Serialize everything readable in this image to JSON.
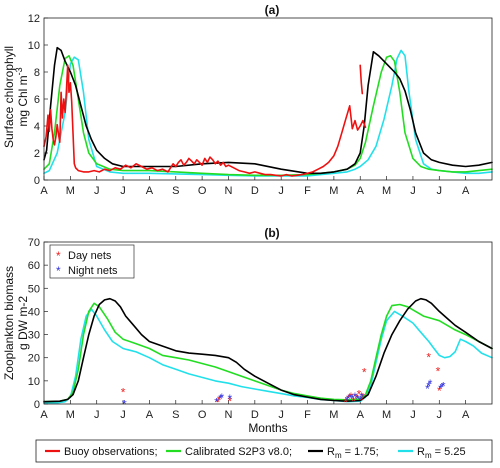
{
  "chart_data": [
    {
      "type": "line",
      "title": "(a)",
      "ylabel_line1": "Surface chlorophyll",
      "ylabel_line2": "mg Chl m",
      "ylabel_sup": "-3",
      "ylim": [
        0,
        12
      ],
      "yticks": [
        0,
        2,
        4,
        6,
        8,
        10,
        12
      ],
      "xlim": [
        0,
        17
      ],
      "xticks": [
        "A",
        "M",
        "J",
        "J",
        "A",
        "S",
        "O",
        "N",
        "D",
        "J",
        "F",
        "M",
        "A",
        "M",
        "J",
        "J",
        "A"
      ],
      "series": [
        {
          "key": "cyan",
          "color": "#22e0ea",
          "width": 1.6,
          "x": [
            0,
            0.2,
            0.5,
            0.8,
            1.0,
            1.15,
            1.3,
            1.5,
            1.7,
            2.0,
            2.5,
            3,
            4,
            5,
            6,
            7,
            8,
            9,
            10,
            10.5,
            11,
            11.5,
            11.8,
            12.0,
            12.3,
            12.6,
            12.9,
            13.2,
            13.4,
            13.55,
            13.7,
            13.85,
            14.1,
            14.4,
            14.7,
            15,
            15.5,
            16,
            16.5,
            17
          ],
          "y": [
            0.5,
            0.7,
            2.0,
            5.0,
            8.6,
            9.1,
            8.9,
            6.5,
            3.0,
            1.0,
            0.6,
            0.5,
            0.5,
            0.45,
            0.4,
            0.35,
            0.3,
            0.3,
            0.3,
            0.4,
            0.5,
            0.6,
            0.8,
            1.0,
            1.5,
            2.5,
            4.5,
            7.0,
            9.0,
            9.6,
            9.2,
            6.5,
            3.0,
            1.2,
            0.8,
            0.7,
            0.6,
            0.5,
            0.5,
            0.6
          ]
        },
        {
          "key": "green",
          "color": "#22dd22",
          "width": 1.6,
          "x": [
            0,
            0.2,
            0.4,
            0.6,
            0.8,
            0.95,
            1.1,
            1.3,
            1.5,
            1.7,
            2.0,
            2.5,
            3,
            4,
            5,
            6,
            7,
            8,
            9,
            10,
            10.5,
            11,
            11.5,
            11.8,
            12.0,
            12.2,
            12.5,
            12.8,
            13.0,
            13.15,
            13.3,
            13.5,
            13.7,
            14.0,
            14.3,
            14.6,
            15,
            15.5,
            16,
            16.5,
            17
          ],
          "y": [
            0.8,
            1.2,
            3.5,
            7.0,
            9.0,
            9.2,
            8.5,
            6.0,
            3.5,
            2.0,
            1.2,
            0.8,
            0.7,
            0.7,
            0.6,
            0.5,
            0.4,
            0.35,
            0.35,
            0.4,
            0.5,
            0.6,
            0.8,
            1.1,
            1.6,
            2.8,
            5.5,
            8.0,
            9.1,
            9.2,
            8.8,
            6.5,
            3.5,
            1.6,
            1.0,
            0.8,
            0.7,
            0.6,
            0.6,
            0.7,
            0.8
          ]
        },
        {
          "key": "black",
          "color": "#000000",
          "width": 1.6,
          "x": [
            0,
            0.1,
            0.25,
            0.4,
            0.5,
            0.65,
            0.8,
            1.0,
            1.2,
            1.4,
            1.6,
            1.8,
            2.0,
            2.3,
            2.6,
            3,
            4,
            5,
            6,
            7,
            8,
            9,
            10,
            10.5,
            11,
            11.5,
            11.8,
            12.0,
            12.15,
            12.3,
            12.5,
            12.7,
            12.9,
            13.1,
            13.3,
            13.5,
            13.7,
            13.9,
            14.1,
            14.4,
            14.7,
            15,
            15.5,
            16,
            16.5,
            17
          ],
          "y": [
            1.5,
            2.2,
            5.5,
            8.5,
            9.8,
            9.6,
            8.8,
            8.0,
            7.0,
            5.5,
            4.0,
            3.0,
            2.2,
            1.6,
            1.2,
            1.0,
            1.0,
            1.0,
            1.2,
            1.3,
            1.2,
            0.8,
            0.5,
            0.5,
            0.6,
            0.8,
            1.2,
            2.0,
            4.0,
            7.0,
            9.5,
            9.2,
            8.8,
            8.4,
            8.0,
            7.5,
            6.6,
            5.2,
            3.5,
            2.0,
            1.5,
            1.3,
            1.1,
            1.0,
            1.1,
            1.3
          ]
        },
        {
          "key": "red",
          "color": "#ee1111",
          "width": 1.6,
          "x": [
            0.0,
            0.08,
            0.15,
            0.2,
            0.25,
            0.3,
            0.35,
            0.4,
            0.45,
            0.5,
            0.55,
            0.6,
            0.65,
            0.7,
            0.75,
            0.8,
            0.85,
            0.9,
            0.95,
            1.0,
            1.05,
            1.1,
            1.15,
            1.2,
            1.3,
            1.5,
            1.7,
            1.9,
            2.1,
            2.3,
            2.5,
            2.7,
            2.9,
            3.1,
            3.3,
            3.5,
            3.7,
            3.9,
            4.1,
            4.3,
            4.5,
            4.7,
            4.9,
            5.0,
            5.1,
            5.2,
            5.3,
            5.4,
            5.5,
            5.6,
            5.7,
            5.8,
            5.9,
            6.0,
            6.1,
            6.2,
            6.3,
            6.4,
            6.5,
            6.6,
            6.7,
            6.8,
            6.9,
            7.0,
            7.2,
            7.4,
            7.6,
            7.8,
            8.0,
            8.2,
            8.4,
            8.6,
            8.8,
            9.0,
            9.2,
            9.4,
            9.6,
            9.8,
            10.0,
            10.2,
            10.4,
            10.6,
            10.8,
            11.0,
            11.15,
            11.3,
            11.45,
            11.6,
            11.7,
            11.8,
            11.9,
            12.0,
            12.1,
            12.2
          ],
          "y": [
            2.5,
            3.2,
            4.8,
            3.6,
            5.2,
            3.8,
            3.0,
            2.6,
            3.2,
            4.1,
            3.4,
            2.8,
            6.5,
            4.6,
            6.0,
            5.0,
            6.6,
            8.5,
            6.5,
            7.2,
            5.8,
            3.5,
            1.2,
            0.9,
            0.7,
            0.6,
            0.6,
            0.7,
            0.6,
            0.8,
            0.7,
            0.9,
            0.8,
            1.1,
            0.9,
            1.2,
            1.0,
            0.8,
            0.9,
            0.7,
            0.8,
            0.6,
            1.2,
            1.0,
            1.3,
            1.5,
            1.1,
            1.3,
            1.6,
            1.4,
            1.2,
            1.5,
            1.3,
            1.1,
            1.6,
            1.3,
            1.7,
            1.5,
            1.2,
            1.4,
            1.1,
            1.3,
            1.0,
            1.1,
            0.9,
            0.7,
            0.6,
            0.5,
            0.6,
            0.5,
            0.4,
            0.4,
            0.35,
            0.3,
            0.4,
            0.3,
            0.35,
            0.4,
            0.5,
            0.6,
            0.8,
            1.0,
            1.3,
            1.8,
            2.5,
            3.5,
            4.5,
            5.5,
            3.8,
            4.4,
            3.7,
            4.0,
            4.4,
            3.9
          ]
        },
        {
          "key": "red2",
          "color": "#ee1111",
          "width": 1.6,
          "x": [
            12.0,
            12.04,
            12.08
          ],
          "y": [
            8.5,
            7.2,
            6.4
          ]
        }
      ]
    },
    {
      "type": "line",
      "title": "(b)",
      "ylabel_line1": "Zooplankton biomass",
      "ylabel_line2": "g DW m-2",
      "xlabel": "Months",
      "ylim": [
        0,
        70
      ],
      "yticks": [
        0,
        10,
        20,
        30,
        40,
        50,
        60,
        70
      ],
      "xlim": [
        0,
        17
      ],
      "xticks": [
        "A",
        "M",
        "J",
        "J",
        "A",
        "S",
        "O",
        "N",
        "D",
        "J",
        "F",
        "M",
        "A",
        "M",
        "J",
        "J",
        "A"
      ],
      "series": [
        {
          "key": "cyan",
          "color": "#22e0ea",
          "width": 1.6,
          "x": [
            0,
            0.5,
            0.8,
            1.0,
            1.2,
            1.4,
            1.6,
            1.8,
            2.0,
            2.3,
            2.6,
            3,
            3.5,
            4,
            4.5,
            5,
            5.5,
            6,
            6.5,
            7,
            7.5,
            8,
            8.5,
            9,
            9.5,
            10,
            10.5,
            11,
            11.5,
            12.0,
            12.2,
            12.4,
            12.6,
            12.8,
            13.0,
            13.3,
            13.6,
            14.0,
            14.3,
            14.6,
            14.8,
            15.0,
            15.2,
            15.4,
            15.6,
            15.8,
            16.0,
            16.3,
            16.6,
            17
          ],
          "y": [
            0.5,
            0.5,
            1.0,
            3.0,
            12.0,
            28.0,
            38.0,
            41.0,
            38.0,
            32.0,
            27.0,
            24.0,
            22.5,
            20.0,
            17.0,
            15.0,
            13.0,
            11.5,
            10.0,
            9.0,
            7.5,
            6.5,
            5.5,
            4.5,
            3.5,
            2.8,
            2.0,
            1.5,
            1.0,
            1.2,
            3.0,
            8.0,
            18.0,
            28.0,
            36.0,
            40.0,
            38.0,
            35.0,
            31.0,
            27.0,
            24.0,
            21.0,
            20.0,
            20.5,
            22.5,
            28.0,
            27.0,
            25.0,
            22.0,
            20.0
          ]
        },
        {
          "key": "green",
          "color": "#22dd22",
          "width": 1.6,
          "x": [
            0,
            0.6,
            0.9,
            1.1,
            1.3,
            1.5,
            1.7,
            1.9,
            2.1,
            2.4,
            2.7,
            3,
            3.5,
            4,
            4.5,
            5,
            5.5,
            6,
            6.5,
            7,
            7.5,
            8,
            8.5,
            9,
            9.5,
            10,
            10.5,
            11,
            11.5,
            12.0,
            12.2,
            12.4,
            12.6,
            12.8,
            13.0,
            13.2,
            13.5,
            13.8,
            14.1,
            14.4,
            14.7,
            15,
            15.3,
            15.6,
            16,
            16.5,
            17
          ],
          "y": [
            1.0,
            1.2,
            2.0,
            5.0,
            15.0,
            30.0,
            40.0,
            43.5,
            42.0,
            37.0,
            31.0,
            28.0,
            26.0,
            24.0,
            21.0,
            20.0,
            19.0,
            17.5,
            16.0,
            14.0,
            12.0,
            10.0,
            8.0,
            6.0,
            4.5,
            3.5,
            2.5,
            2.0,
            1.8,
            2.2,
            4.0,
            10.0,
            20.0,
            30.0,
            38.0,
            42.5,
            43.0,
            42.0,
            40.0,
            38.0,
            37.0,
            36.0,
            34.0,
            32.0,
            30.0,
            27.0,
            24.0
          ]
        },
        {
          "key": "black",
          "color": "#000000",
          "width": 1.6,
          "x": [
            0,
            0.6,
            0.9,
            1.1,
            1.3,
            1.5,
            1.7,
            1.9,
            2.1,
            2.3,
            2.5,
            2.7,
            2.9,
            3.1,
            3.4,
            3.7,
            4,
            4.5,
            5,
            5.5,
            6,
            6.5,
            7,
            7.3,
            7.6,
            8,
            8.5,
            9,
            9.5,
            10,
            10.5,
            11,
            11.5,
            12.0,
            12.3,
            12.6,
            12.9,
            13.2,
            13.5,
            13.8,
            14.1,
            14.3,
            14.5,
            14.7,
            15,
            15.3,
            15.6,
            16,
            16.5,
            17
          ],
          "y": [
            1.0,
            1.2,
            2.0,
            4.0,
            10.0,
            20.0,
            30.0,
            38.0,
            43.0,
            45.0,
            45.5,
            44.5,
            42.0,
            38.0,
            34.0,
            30.0,
            27.0,
            25.0,
            23.0,
            22.0,
            21.5,
            21.0,
            20.0,
            18.0,
            15.0,
            12.0,
            9.0,
            6.0,
            4.0,
            3.0,
            2.0,
            1.5,
            1.2,
            1.5,
            4.0,
            12.0,
            22.0,
            30.0,
            36.0,
            41.0,
            44.5,
            45.5,
            45.0,
            43.5,
            40.0,
            37.0,
            34.0,
            31.0,
            27.0,
            24.0
          ]
        }
      ],
      "day_nets": {
        "color": "#ee2222",
        "x": [
          3.0,
          6.6,
          6.65,
          7.05,
          11.45,
          11.55,
          11.65,
          11.75,
          11.85,
          11.95,
          12.05,
          12.1,
          12.15,
          14.6,
          14.95,
          15.0
        ],
        "y": [
          5.5,
          1.0,
          2.2,
          1.5,
          1.0,
          2.5,
          3.5,
          1.5,
          2.8,
          4.5,
          2.0,
          3.2,
          14.0,
          20.5,
          14.5,
          6.0
        ]
      },
      "night_nets": {
        "color": "#3333dd",
        "x": [
          3.05,
          6.55,
          6.7,
          6.75,
          7.05,
          11.5,
          11.6,
          11.7,
          11.8,
          11.9,
          12.0,
          12.05,
          14.55,
          14.6,
          14.65,
          15.05,
          15.1,
          15.15
        ],
        "y": [
          0.3,
          1.0,
          2.5,
          3.0,
          2.5,
          2.0,
          3.0,
          2.5,
          3.5,
          2.5,
          2.0,
          3.5,
          7.0,
          8.0,
          9.0,
          7.0,
          7.5,
          8.0
        ]
      },
      "legend": [
        {
          "key": "day",
          "label": "Day nets"
        },
        {
          "key": "night",
          "label": "Night nets"
        }
      ]
    }
  ],
  "bottom_legend": [
    {
      "key": "buoy",
      "color": "#ee1111",
      "label": "Buoy observations;"
    },
    {
      "key": "cal",
      "color": "#22dd22",
      "label": "Calibrated S2P3 v8.0;"
    },
    {
      "key": "rm175",
      "color": "#000000",
      "prefix": "R",
      "sub": "m",
      "suffix": " = 1.75;"
    },
    {
      "key": "rm525",
      "color": "#22e0ea",
      "prefix": "R",
      "sub": "m",
      "suffix": " = 5.25"
    }
  ]
}
